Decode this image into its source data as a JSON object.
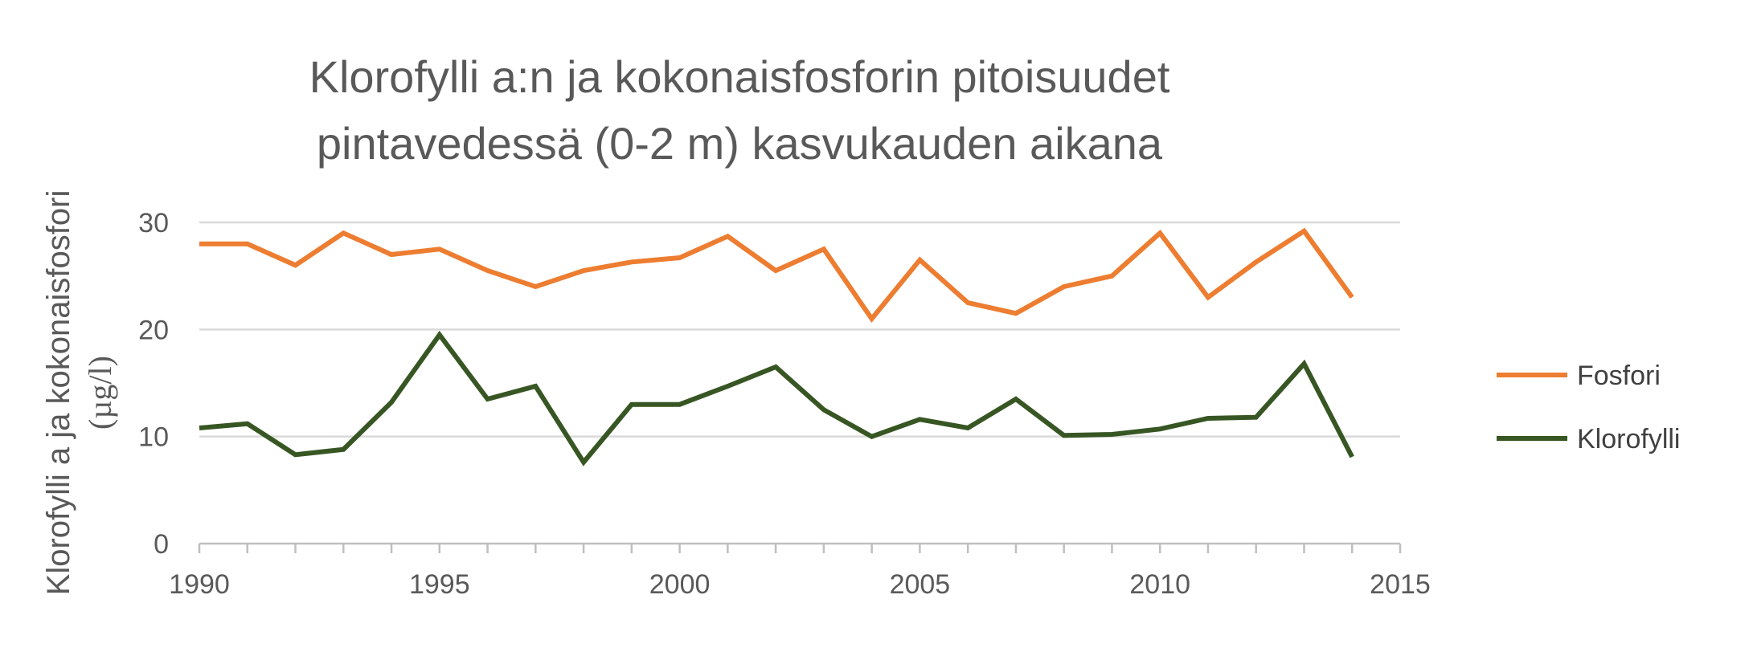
{
  "chart_data": {
    "type": "line",
    "title_lines": [
      "Klorofylli a:n ja kokonaisfosforin pitoisuudet",
      "pintavedessä (0-2 m) kasvukauden aikana"
    ],
    "xlabel": "",
    "ylabel_lines": [
      "Klorofylli a ja kokonaisfosfori",
      "(µg/l)"
    ],
    "xlim": [
      1990,
      2015
    ],
    "ylim": [
      0,
      30
    ],
    "x_ticks": [
      1990,
      1995,
      2000,
      2005,
      2010,
      2015
    ],
    "y_ticks": [
      0,
      10,
      20,
      30
    ],
    "grid": "horizontal",
    "legend_position": "right",
    "x": [
      1990,
      1991,
      1992,
      1993,
      1994,
      1995,
      1996,
      1997,
      1998,
      1999,
      2000,
      2001,
      2002,
      2003,
      2004,
      2005,
      2006,
      2007,
      2008,
      2009,
      2010,
      2011,
      2012,
      2013,
      2014
    ],
    "series": [
      {
        "name": "Fosfori",
        "color": "#ED7D31",
        "values": [
          28,
          28,
          26,
          29,
          27,
          27.5,
          25.5,
          24,
          25.5,
          26.3,
          26.7,
          28.7,
          25.5,
          27.5,
          21,
          26.5,
          22.5,
          21.5,
          24,
          25,
          29,
          23,
          26.3,
          29.2,
          23
        ]
      },
      {
        "name": "Klorofylli",
        "color": "#375623",
        "values": [
          10.8,
          11.2,
          8.3,
          8.8,
          13.2,
          19.5,
          13.5,
          14.7,
          7.6,
          13,
          13,
          14.7,
          16.5,
          12.5,
          10,
          11.6,
          10.8,
          13.5,
          10.1,
          10.2,
          10.7,
          11.7,
          11.8,
          16.8,
          8.1
        ]
      }
    ]
  }
}
